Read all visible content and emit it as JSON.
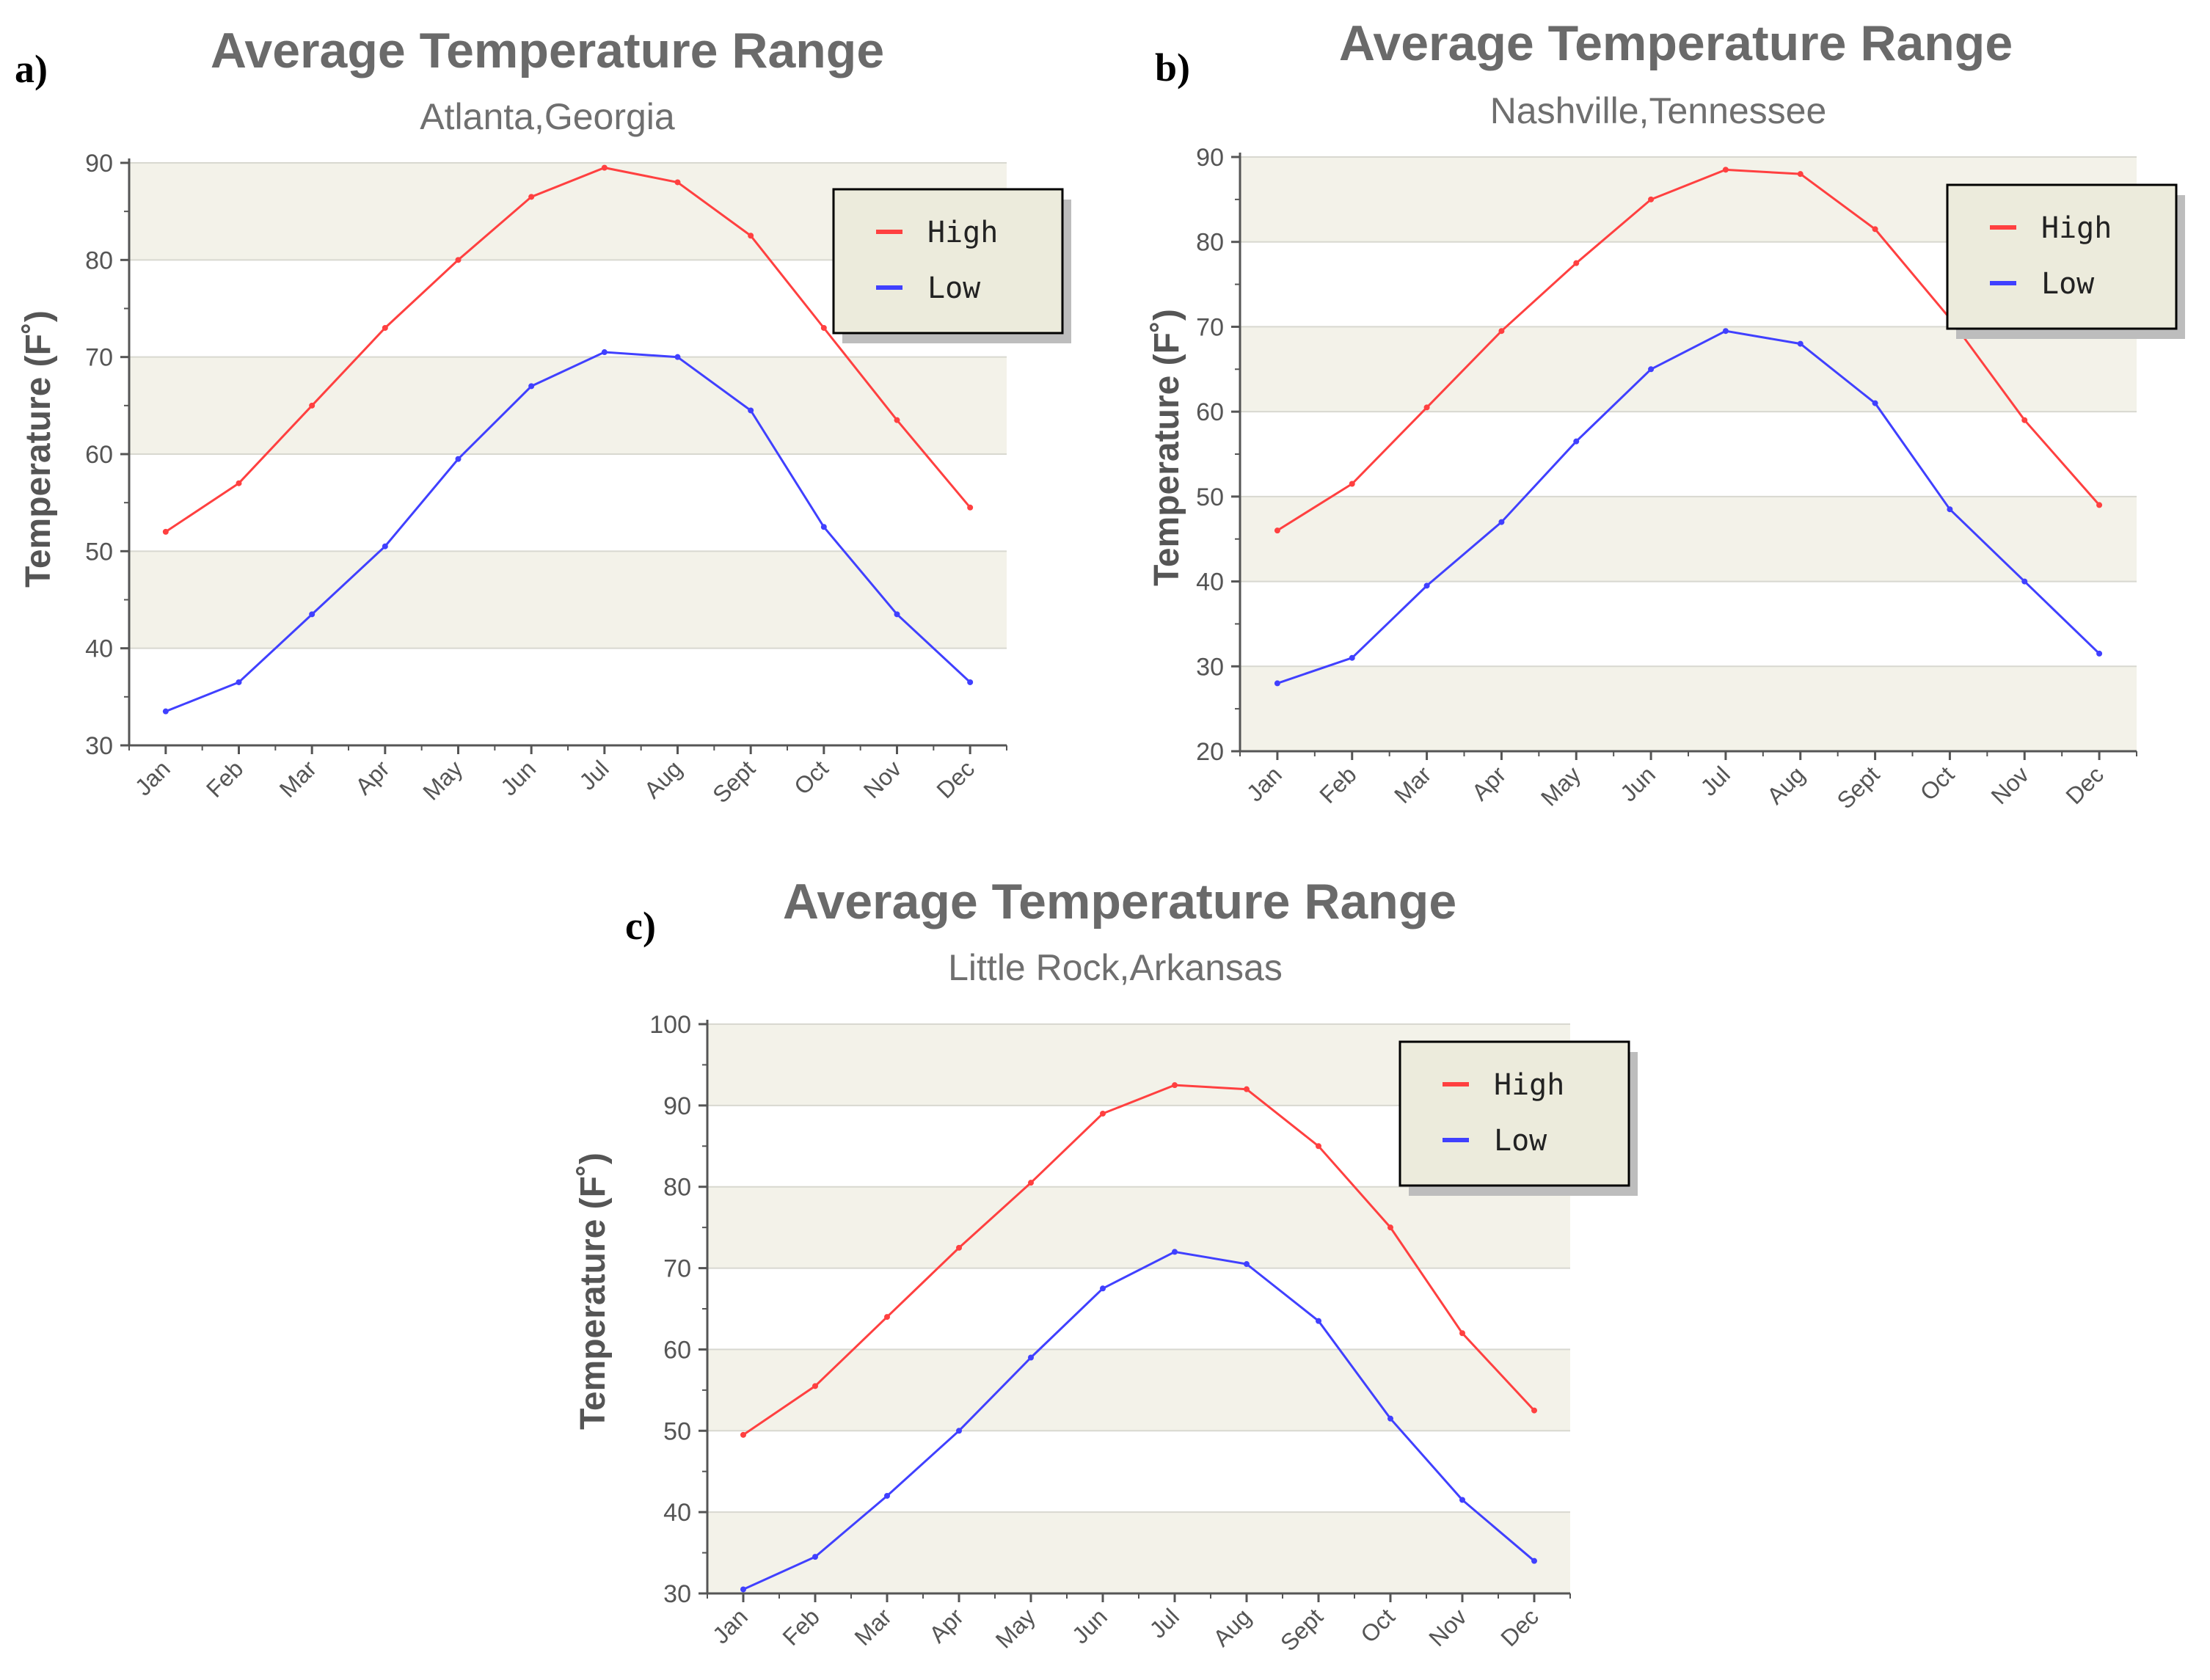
{
  "panels": [
    {
      "label": "a)",
      "title": "Average Temperature Range",
      "subtitle": "Atlanta,Georgia",
      "ylabel": "Temperature (F˚)",
      "legend": [
        "High",
        "Low"
      ]
    },
    {
      "label": "b)",
      "title": "Average Temperature Range",
      "subtitle": "Nashville,Tennessee",
      "ylabel": "Temperature (F˚)",
      "legend": [
        "High",
        "Low"
      ]
    },
    {
      "label": "c)",
      "title": "Average Temperature Range",
      "subtitle": "Little Rock,Arkansas",
      "ylabel": "Temperature (F˚)",
      "legend": [
        "High",
        "Low"
      ]
    }
  ],
  "colors": {
    "high": "#ff4040",
    "low": "#4040ff",
    "band": "#f3f2e9",
    "legend_bg": "#ecebdc"
  },
  "chart_data": [
    {
      "type": "line",
      "title": "Average Temperature Range",
      "subtitle": "Atlanta,Georgia",
      "xlabel": "",
      "ylabel": "Temperature (F˚)",
      "categories": [
        "Jan",
        "Feb",
        "Mar",
        "Apr",
        "May",
        "Jun",
        "Jul",
        "Aug",
        "Sept",
        "Oct",
        "Nov",
        "Dec"
      ],
      "series": [
        {
          "name": "High",
          "values": [
            52,
            57,
            65,
            73,
            80,
            86.5,
            89.5,
            88,
            82.5,
            73,
            63.5,
            54.5
          ]
        },
        {
          "name": "Low",
          "values": [
            33.5,
            36.5,
            43.5,
            50.5,
            59.5,
            67,
            70.5,
            70,
            64.5,
            52.5,
            43.5,
            36.5
          ]
        }
      ],
      "ylim": [
        30,
        90
      ],
      "yticks": [
        "30",
        "40",
        "50",
        "60",
        "70",
        "80",
        "90"
      ],
      "legend": "top-right",
      "grid": true
    },
    {
      "type": "line",
      "title": "Average Temperature Range",
      "subtitle": "Nashville,Tennessee",
      "xlabel": "",
      "ylabel": "Temperature (F˚)",
      "categories": [
        "Jan",
        "Feb",
        "Mar",
        "Apr",
        "May",
        "Jun",
        "Jul",
        "Aug",
        "Sept",
        "Oct",
        "Nov",
        "Dec"
      ],
      "series": [
        {
          "name": "High",
          "values": [
            46,
            51.5,
            60.5,
            69.5,
            77.5,
            85,
            88.5,
            88,
            81.5,
            71,
            59,
            49
          ]
        },
        {
          "name": "Low",
          "values": [
            28,
            31,
            39.5,
            47,
            56.5,
            65,
            69.5,
            68,
            61,
            48.5,
            40,
            31.5
          ]
        }
      ],
      "ylim": [
        20,
        90
      ],
      "yticks": [
        "20",
        "30",
        "40",
        "50",
        "60",
        "70",
        "80",
        "90"
      ],
      "legend": "top-right",
      "grid": true
    },
    {
      "type": "line",
      "title": "Average Temperature Range",
      "subtitle": "Little Rock,Arkansas",
      "xlabel": "",
      "ylabel": "Temperature (F˚)",
      "categories": [
        "Jan",
        "Feb",
        "Mar",
        "Apr",
        "May",
        "Jun",
        "Jul",
        "Aug",
        "Sept",
        "Oct",
        "Nov",
        "Dec"
      ],
      "series": [
        {
          "name": "High",
          "values": [
            49.5,
            55.5,
            64,
            72.5,
            80.5,
            89,
            92.5,
            92,
            85,
            75,
            62,
            52.5
          ]
        },
        {
          "name": "Low",
          "values": [
            30.5,
            34.5,
            42,
            50,
            59,
            67.5,
            72,
            70.5,
            63.5,
            51.5,
            41.5,
            34
          ]
        }
      ],
      "ylim": [
        30,
        100
      ],
      "yticks": [
        "30",
        "40",
        "50",
        "60",
        "70",
        "80",
        "90",
        "100"
      ],
      "legend": "top-right",
      "grid": true
    }
  ]
}
